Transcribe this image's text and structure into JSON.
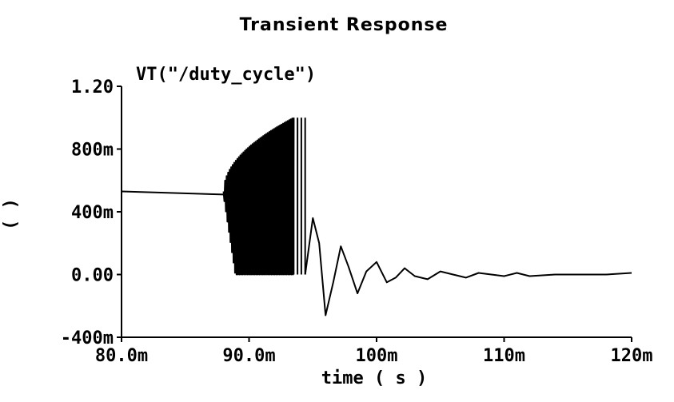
{
  "chart_data": {
    "type": "line",
    "title": "Transient Response",
    "xlabel": "time ( s )",
    "ylabel": "(  )",
    "series": [
      {
        "name": "VT(\"/duty_cycle\")",
        "segments": [
          {
            "kind": "line",
            "points": [
              [
                0.08,
                0.53
              ],
              [
                0.088,
                0.51
              ]
            ]
          },
          {
            "kind": "oscillation",
            "t_start": 0.088,
            "t_end": 0.0935,
            "low": 0.0,
            "high_start": 0.53,
            "high_end": 1.0,
            "period": 0.00012
          },
          {
            "kind": "spikes",
            "t": [
              0.0935,
              0.0938,
              0.0941,
              0.0944
            ],
            "low": 0.0,
            "high": 1.0
          },
          {
            "kind": "damped",
            "t_start": 0.0944,
            "t_end": 0.12,
            "points": [
              [
                0.0944,
                0.0
              ],
              [
                0.095,
                0.36
              ],
              [
                0.0955,
                0.2
              ],
              [
                0.096,
                -0.26
              ],
              [
                0.0966,
                -0.05
              ],
              [
                0.0972,
                0.18
              ],
              [
                0.0978,
                0.05
              ],
              [
                0.0985,
                -0.12
              ],
              [
                0.0992,
                0.02
              ],
              [
                0.1,
                0.08
              ],
              [
                0.1008,
                -0.05
              ],
              [
                0.1015,
                -0.02
              ],
              [
                0.1022,
                0.04
              ],
              [
                0.103,
                -0.01
              ],
              [
                0.104,
                -0.03
              ],
              [
                0.105,
                0.02
              ],
              [
                0.106,
                0.0
              ],
              [
                0.107,
                -0.02
              ],
              [
                0.108,
                0.01
              ],
              [
                0.109,
                0.0
              ],
              [
                0.11,
                -0.01
              ],
              [
                0.111,
                0.01
              ],
              [
                0.112,
                -0.01
              ],
              [
                0.114,
                0.0
              ],
              [
                0.116,
                0.0
              ],
              [
                0.118,
                0.0
              ],
              [
                0.12,
                0.01
              ]
            ]
          }
        ]
      }
    ],
    "xlim": [
      0.08,
      0.12
    ],
    "ylim": [
      -0.4,
      1.2
    ],
    "x_ticks": [
      {
        "value": 0.08,
        "label": "80.0m"
      },
      {
        "value": 0.09,
        "label": "90.0m"
      },
      {
        "value": 0.1,
        "label": "100m"
      },
      {
        "value": 0.11,
        "label": "110m"
      },
      {
        "value": 0.12,
        "label": "120m"
      }
    ],
    "y_ticks": [
      {
        "value": 1.2,
        "label": "1.20"
      },
      {
        "value": 0.8,
        "label": "800m"
      },
      {
        "value": 0.4,
        "label": "400m"
      },
      {
        "value": 0.0,
        "label": "0.00"
      },
      {
        "value": -0.4,
        "label": "-400m"
      }
    ],
    "grid": false,
    "legend": "top-left"
  }
}
